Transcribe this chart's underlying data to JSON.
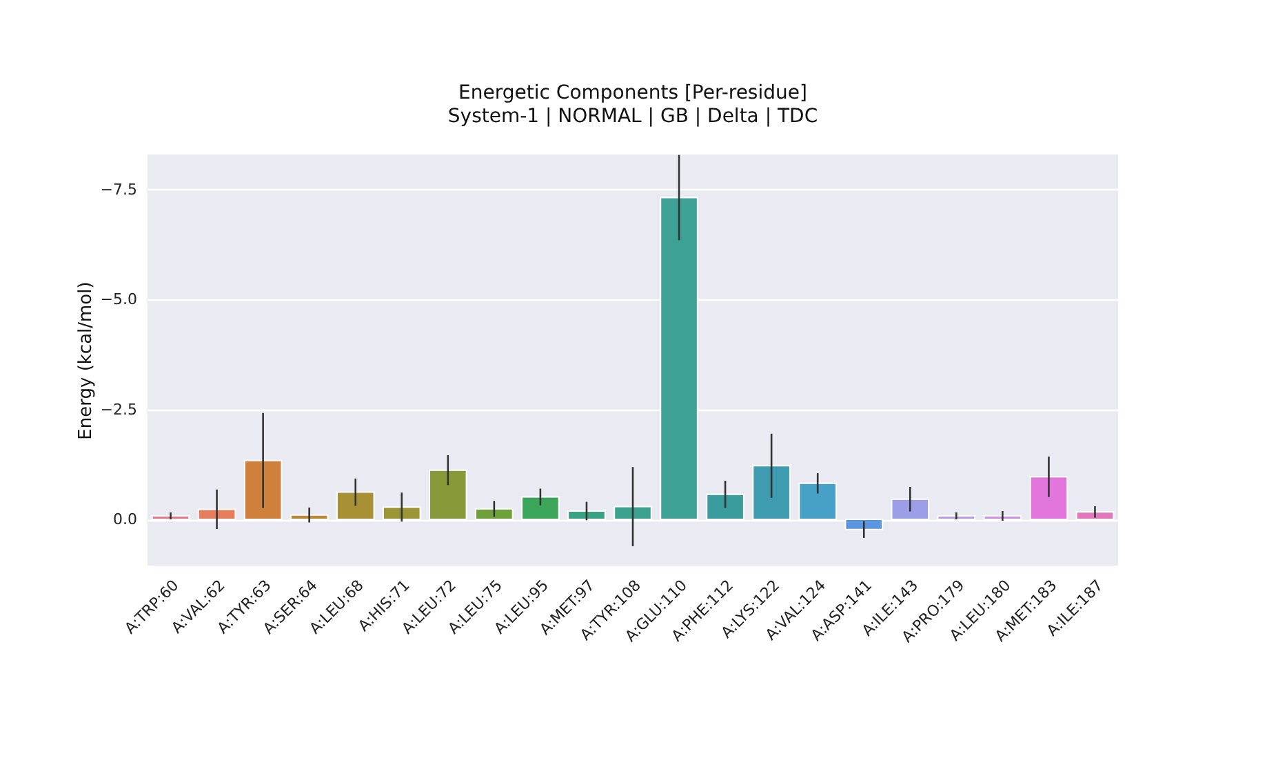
{
  "chart_data": {
    "type": "bar",
    "title": "Energetic Components [Per-residue]",
    "subtitle": "System-1 | NORMAL | GB | Delta | TDC",
    "ylabel": "Energy (kcal/mol)",
    "categories": [
      "A:TRP:60",
      "A:VAL:62",
      "A:TYR:63",
      "A:SER:64",
      "A:LEU:68",
      "A:HIS:71",
      "A:LEU:72",
      "A:LEU:75",
      "A:LEU:95",
      "A:MET:97",
      "A:TYR:108",
      "A:GLU:110",
      "A:PHE:112",
      "A:LYS:122",
      "A:VAL:124",
      "A:ASP:141",
      "A:ILE:143",
      "A:PRO:179",
      "A:LEU:180",
      "A:MET:183",
      "A:ILE:187"
    ],
    "values": [
      -0.08,
      -0.23,
      -1.34,
      -0.1,
      -0.62,
      -0.28,
      -1.12,
      -0.24,
      -0.51,
      -0.19,
      -0.29,
      -7.32,
      -0.57,
      -1.22,
      -0.82,
      0.23,
      -0.46,
      -0.08,
      -0.08,
      -0.97,
      -0.17
    ],
    "errors": [
      0.08,
      0.45,
      1.08,
      0.17,
      0.31,
      0.33,
      0.34,
      0.18,
      0.19,
      0.21,
      0.9,
      0.97,
      0.31,
      0.73,
      0.23,
      0.19,
      0.28,
      0.08,
      0.11,
      0.46,
      0.13
    ],
    "colors": [
      "#e8748a",
      "#e57e5c",
      "#ce803c",
      "#b88a35",
      "#a89035",
      "#9c9535",
      "#88993a",
      "#6ea13a",
      "#3ba55a",
      "#38a282",
      "#3aa28e",
      "#3da195",
      "#3a9c9c",
      "#3e9bb0",
      "#47a0c8",
      "#5b96e0",
      "#9c9fe8",
      "#b79be6",
      "#cc8ee6",
      "#e276dc",
      "#e377bb"
    ],
    "ylim": [
      1.05,
      -8.3
    ],
    "yticks": [
      {
        "value": 0,
        "label": "0.0"
      },
      {
        "value": -2.5,
        "label": "−2.5"
      },
      {
        "value": -5,
        "label": "−5.0"
      },
      {
        "value": -7.5,
        "label": "−7.5"
      }
    ],
    "grid": "y"
  }
}
